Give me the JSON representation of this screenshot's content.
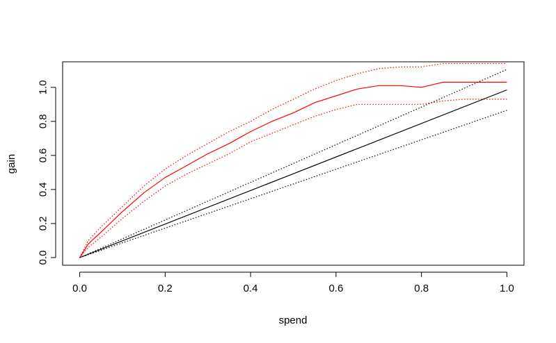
{
  "chart_data": {
    "type": "line",
    "title": "",
    "xlabel": "spend",
    "ylabel": "gain",
    "xlim": [
      -0.04,
      1.04
    ],
    "ylim": [
      -0.045,
      1.15
    ],
    "xticks": [
      0.0,
      0.2,
      0.4,
      0.6,
      0.8,
      1.0
    ],
    "xtick_labels": [
      "0.0",
      "0.2",
      "0.4",
      "0.6",
      "0.8",
      "1.0"
    ],
    "yticks": [
      0.0,
      0.2,
      0.4,
      0.6,
      0.8,
      1.0
    ],
    "ytick_labels": [
      "0.0",
      "0.2",
      "0.4",
      "0.6",
      "0.8",
      "1.0"
    ],
    "grid": false,
    "legend": "none",
    "series": [
      {
        "color": "#ff0000",
        "style": "solid",
        "x": [
          0.0,
          0.02,
          0.05,
          0.1,
          0.15,
          0.2,
          0.25,
          0.3,
          0.35,
          0.4,
          0.45,
          0.5,
          0.55,
          0.6,
          0.65,
          0.7,
          0.75,
          0.8,
          0.85,
          0.9,
          0.95,
          1.0
        ],
        "y": [
          0.0,
          0.08,
          0.15,
          0.27,
          0.38,
          0.47,
          0.54,
          0.61,
          0.67,
          0.74,
          0.8,
          0.85,
          0.91,
          0.95,
          0.99,
          1.01,
          1.01,
          1.0,
          1.03,
          1.03,
          1.03,
          1.03
        ]
      },
      {
        "color": "#ff0000",
        "style": "dotted",
        "x": [
          0.0,
          0.02,
          0.05,
          0.1,
          0.15,
          0.2,
          0.25,
          0.3,
          0.35,
          0.4,
          0.45,
          0.5,
          0.55,
          0.6,
          0.65,
          0.7,
          0.75,
          0.8,
          0.85,
          0.9,
          0.95,
          1.0
        ],
        "y": [
          0.0,
          0.1,
          0.18,
          0.3,
          0.42,
          0.52,
          0.6,
          0.67,
          0.74,
          0.8,
          0.87,
          0.93,
          0.99,
          1.04,
          1.08,
          1.11,
          1.12,
          1.12,
          1.14,
          1.14,
          1.14,
          1.14
        ]
      },
      {
        "color": "#ff0000",
        "style": "dotted",
        "x": [
          0.0,
          0.02,
          0.05,
          0.1,
          0.15,
          0.2,
          0.25,
          0.3,
          0.35,
          0.4,
          0.45,
          0.5,
          0.55,
          0.6,
          0.65,
          0.7,
          0.75,
          0.8,
          0.85,
          0.9,
          0.95,
          1.0
        ],
        "y": [
          0.0,
          0.06,
          0.12,
          0.23,
          0.33,
          0.42,
          0.49,
          0.55,
          0.61,
          0.68,
          0.73,
          0.78,
          0.83,
          0.87,
          0.9,
          0.9,
          0.9,
          0.9,
          0.92,
          0.93,
          0.93,
          0.93
        ]
      },
      {
        "color": "#000000",
        "style": "solid",
        "x": [
          0.0,
          1.0
        ],
        "y": [
          0.0,
          0.985
        ]
      },
      {
        "color": "#000000",
        "style": "dotted",
        "x": [
          0.0,
          1.0
        ],
        "y": [
          0.0,
          1.105
        ]
      },
      {
        "color": "#000000",
        "style": "dotted",
        "x": [
          0.0,
          1.0
        ],
        "y": [
          0.0,
          0.865
        ]
      }
    ]
  }
}
